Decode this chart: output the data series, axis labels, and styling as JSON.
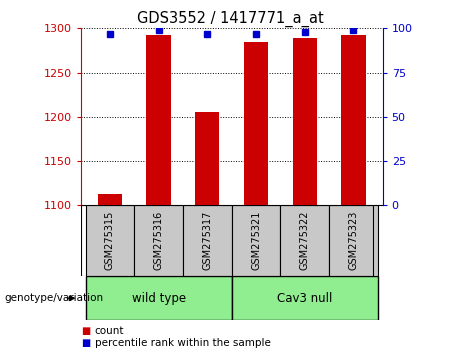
{
  "title": "GDS3552 / 1417771_a_at",
  "samples": [
    "GSM275315",
    "GSM275316",
    "GSM275317",
    "GSM275321",
    "GSM275322",
    "GSM275323"
  ],
  "counts": [
    1113,
    1292,
    1205,
    1284,
    1289,
    1293
  ],
  "percentile_ranks": [
    97,
    99,
    97,
    97,
    98,
    99
  ],
  "ylim_left": [
    1100,
    1300
  ],
  "ylim_right": [
    0,
    100
  ],
  "yticks_left": [
    1100,
    1150,
    1200,
    1250,
    1300
  ],
  "yticks_right": [
    0,
    25,
    50,
    75,
    100
  ],
  "bar_color": "#cc0000",
  "dot_color": "#0000cc",
  "groups": [
    {
      "label": "wild type",
      "indices": [
        0,
        1,
        2
      ],
      "color": "#90ee90"
    },
    {
      "label": "Cav3 null",
      "indices": [
        3,
        4,
        5
      ],
      "color": "#90ee90"
    }
  ],
  "group_label": "genotype/variation",
  "legend_count_label": "count",
  "legend_percentile_label": "percentile rank within the sample",
  "left_axis_color": "#cc0000",
  "right_axis_color": "#0000cc",
  "tick_bg_color": "#c8c8c8",
  "bar_width": 0.5
}
